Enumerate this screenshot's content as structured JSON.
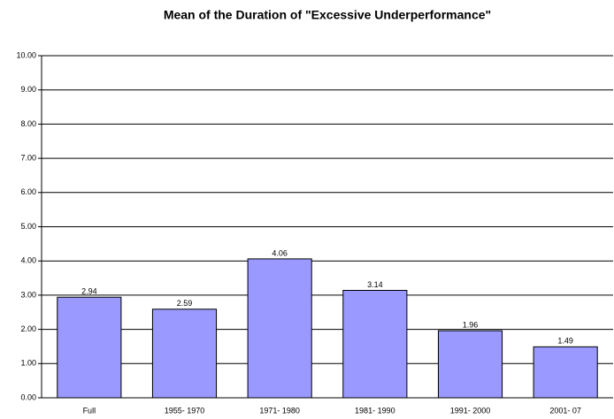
{
  "chart_data": {
    "type": "bar",
    "title": "Mean of the Duration of \"Excessive Underperformance\"",
    "categories": [
      "Full",
      "1955- 1970",
      "1971- 1980",
      "1981- 1990",
      "1991- 2000",
      "2001- 07"
    ],
    "values": [
      2.94,
      2.59,
      4.06,
      3.14,
      1.96,
      1.49
    ],
    "color": "#9999ff",
    "ylim": [
      0,
      10
    ],
    "yticks": [
      {
        "value": 0,
        "label": "0.00"
      },
      {
        "value": 1,
        "label": "1.00"
      },
      {
        "value": 2,
        "label": "2.00"
      },
      {
        "value": 3,
        "label": "3.00"
      },
      {
        "value": 4,
        "label": "4.00"
      },
      {
        "value": 5,
        "label": "5.00"
      },
      {
        "value": 6,
        "label": "6.00"
      },
      {
        "value": 7,
        "label": "7.00"
      },
      {
        "value": 8,
        "label": "8.00"
      },
      {
        "value": 9,
        "label": "9.00"
      },
      {
        "value": 10,
        "label": "10.00"
      }
    ],
    "grid": true
  }
}
